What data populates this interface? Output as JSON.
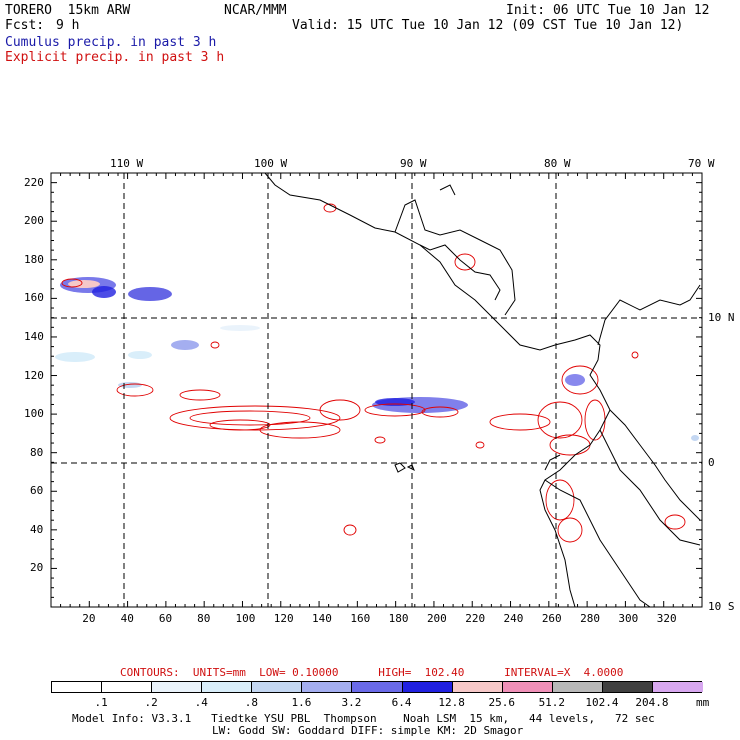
{
  "header": {
    "model": "TORERO  15km ARW",
    "org": "NCAR/MMM",
    "init": "Init: 06 UTC Tue 10 Jan 12",
    "fcst_label": "Fcst:",
    "fcst_value": "9 h",
    "valid": "Valid: 15 UTC Tue 10 Jan 12 (09 CST Tue 10 Jan 12)",
    "cumulus": "Cumulus precip. in past 3 h",
    "explicit": "Explicit precip. in past 3 h"
  },
  "colors": {
    "cumulus_text": "#1a1aa8",
    "explicit_text": "#d01010",
    "contour": "#e00000",
    "coast": "#000000"
  },
  "map": {
    "lon_labels": [
      "110 W",
      "100 W",
      "90 W",
      "80 W",
      "70 W"
    ],
    "lat_labels": [
      "10 N",
      "0",
      "10 S"
    ],
    "x_ticks": [
      "20",
      "40",
      "60",
      "80",
      "100",
      "120",
      "140",
      "160",
      "180",
      "200",
      "220",
      "240",
      "260",
      "280",
      "300",
      "320"
    ],
    "y_ticks": [
      "20",
      "40",
      "60",
      "80",
      "100",
      "120",
      "140",
      "160",
      "180",
      "200",
      "220"
    ]
  },
  "contours_label": "CONTOURS:  UNITS=mm  LOW= 0.10000      HIGH=  102.40      INTERVAL=X  4.0000",
  "colorbar": {
    "labels": [
      ".1",
      ".2",
      ".4",
      ".8",
      "1.6",
      "3.2",
      "6.4",
      "12.8",
      "25.6",
      "51.2",
      "102.4",
      "204.8"
    ],
    "unit": "mm",
    "colors": [
      "#ffffff",
      "#ffffff",
      "#eaf3fb",
      "#d9eefa",
      "#c4d7f2",
      "#a4aef0",
      "#6a6ae8",
      "#2020e0",
      "#f6c8c8",
      "#f090b8",
      "#b8b8b8",
      "#404040",
      "#d8a8f0"
    ]
  },
  "footer": {
    "line1": "Model Info: V3.3.1   Tiedtke YSU PBL  Thompson    Noah LSM  15 km,   44 levels,   72 sec",
    "line2": "LW: Godd SW: Goddard DIFF: simple KM: 2D Smagor"
  }
}
